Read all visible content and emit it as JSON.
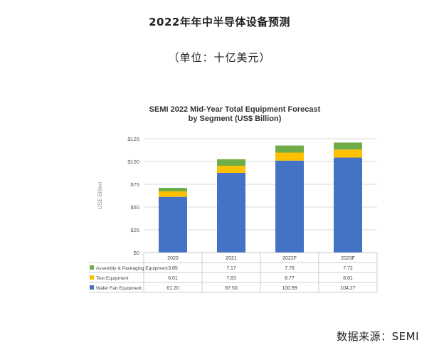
{
  "page": {
    "title": "2022年年中半导体设备预测",
    "unit": "（单位：十亿美元）",
    "source": "数据来源：SEMI"
  },
  "colors": {
    "wafer_fab": "#4472C4",
    "test": "#FFC000",
    "assembly": "#70AD47",
    "grid": "#d9d9d9",
    "table_border": "#bfbfbf"
  },
  "chart_data": {
    "type": "bar",
    "stacked": true,
    "title_line1": "SEMI 2022 Mid-Year Total Equipment Forecast",
    "title_line2": "by Segment (US$ Billion)",
    "ylabel": "US$ Billion",
    "ylim": [
      0,
      125
    ],
    "yticks": [
      "$0",
      "$25",
      "$50",
      "$75",
      "$100",
      "$125"
    ],
    "ytick_values": [
      0,
      25,
      50,
      75,
      100,
      125
    ],
    "grid": true,
    "legend": "data-table",
    "categories": [
      "2020",
      "2021",
      "2022F",
      "2023F"
    ],
    "series": [
      {
        "name": "Assembly & Packaging Equipment",
        "color_key": "assembly",
        "values": [
          3.85,
          7.17,
          7.76,
          7.72
        ],
        "labels": [
          "3.85",
          "7.17",
          "7.76",
          "7.72"
        ]
      },
      {
        "name": "Test Equipment",
        "color_key": "test",
        "values": [
          6.01,
          7.83,
          8.77,
          8.81
        ],
        "labels": [
          "6.01",
          "7.83",
          "8.77",
          "8.81"
        ]
      },
      {
        "name": "Wafer Fab Equipment",
        "color_key": "wafer_fab",
        "values": [
          61.2,
          87.5,
          100.99,
          104.27
        ],
        "labels": [
          "61.20",
          "87.50",
          "100.99",
          "104.27"
        ]
      }
    ]
  }
}
